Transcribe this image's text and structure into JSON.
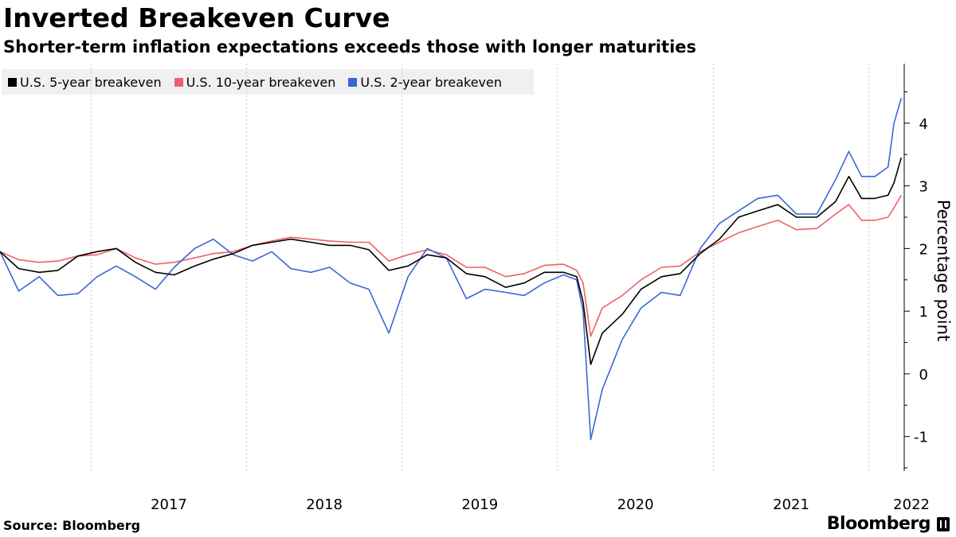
{
  "header": {
    "title": "Inverted Breakeven Curve",
    "subtitle": "Shorter-term inflation expectations exceeds those with longer maturities"
  },
  "footer": {
    "source": "Source: Bloomberg",
    "brand": "Bloomberg"
  },
  "chart_data": {
    "type": "line",
    "title": "Inverted Breakeven Curve",
    "subtitle": "Shorter-term inflation expectations exceeds those with longer maturities",
    "xlabel": "",
    "ylabel": "Percentage point",
    "xlim": [
      "2016-06-01",
      "2022-03-25"
    ],
    "ylim": [
      -1.55,
      4.95
    ],
    "y_ticks": [
      -1,
      0,
      1,
      2,
      3,
      4
    ],
    "x_ticks": [
      {
        "label": "2017",
        "date": "2017-01-01"
      },
      {
        "label": "2018",
        "date": "2018-01-01"
      },
      {
        "label": "2019",
        "date": "2019-01-01"
      },
      {
        "label": "2020",
        "date": "2020-01-01"
      },
      {
        "label": "2021",
        "date": "2021-01-01"
      },
      {
        "label": "2022",
        "date": "2022-01-01"
      }
    ],
    "grid": {
      "vertical": true,
      "horizontal": false
    },
    "y_axis_position": "right",
    "legend_position": "top-left",
    "series": [
      {
        "name": "U.S. 5-year breakeven",
        "color": "#000000",
        "points": [
          [
            "2016-06-01",
            1.95
          ],
          [
            "2016-07-15",
            1.68
          ],
          [
            "2016-09-01",
            1.62
          ],
          [
            "2016-10-15",
            1.65
          ],
          [
            "2016-12-01",
            1.88
          ],
          [
            "2017-01-15",
            1.95
          ],
          [
            "2017-03-01",
            2.0
          ],
          [
            "2017-04-15",
            1.78
          ],
          [
            "2017-06-01",
            1.62
          ],
          [
            "2017-07-15",
            1.58
          ],
          [
            "2017-09-01",
            1.72
          ],
          [
            "2017-10-15",
            1.83
          ],
          [
            "2017-12-01",
            1.92
          ],
          [
            "2018-01-15",
            2.05
          ],
          [
            "2018-03-01",
            2.1
          ],
          [
            "2018-04-15",
            2.15
          ],
          [
            "2018-06-01",
            2.1
          ],
          [
            "2018-07-15",
            2.05
          ],
          [
            "2018-09-01",
            2.05
          ],
          [
            "2018-10-15",
            1.98
          ],
          [
            "2018-12-01",
            1.65
          ],
          [
            "2019-01-15",
            1.72
          ],
          [
            "2019-03-01",
            1.9
          ],
          [
            "2019-04-15",
            1.85
          ],
          [
            "2019-06-01",
            1.6
          ],
          [
            "2019-07-15",
            1.55
          ],
          [
            "2019-09-01",
            1.38
          ],
          [
            "2019-10-15",
            1.45
          ],
          [
            "2019-12-01",
            1.62
          ],
          [
            "2020-01-15",
            1.62
          ],
          [
            "2020-02-15",
            1.55
          ],
          [
            "2020-03-01",
            1.15
          ],
          [
            "2020-03-19",
            0.15
          ],
          [
            "2020-04-15",
            0.65
          ],
          [
            "2020-06-01",
            0.95
          ],
          [
            "2020-07-15",
            1.35
          ],
          [
            "2020-09-01",
            1.55
          ],
          [
            "2020-10-15",
            1.6
          ],
          [
            "2020-12-01",
            1.92
          ],
          [
            "2021-01-15",
            2.15
          ],
          [
            "2021-03-01",
            2.5
          ],
          [
            "2021-04-15",
            2.6
          ],
          [
            "2021-06-01",
            2.7
          ],
          [
            "2021-07-15",
            2.5
          ],
          [
            "2021-09-01",
            2.5
          ],
          [
            "2021-10-15",
            2.75
          ],
          [
            "2021-11-15",
            3.15
          ],
          [
            "2021-12-15",
            2.8
          ],
          [
            "2022-01-15",
            2.8
          ],
          [
            "2022-02-15",
            2.85
          ],
          [
            "2022-03-01",
            3.05
          ],
          [
            "2022-03-18",
            3.45
          ]
        ]
      },
      {
        "name": "U.S. 10-year breakeven",
        "color": "#f0606a",
        "points": [
          [
            "2016-06-01",
            1.95
          ],
          [
            "2016-07-15",
            1.82
          ],
          [
            "2016-09-01",
            1.78
          ],
          [
            "2016-10-15",
            1.8
          ],
          [
            "2016-12-01",
            1.88
          ],
          [
            "2017-01-15",
            1.9
          ],
          [
            "2017-03-01",
            2.0
          ],
          [
            "2017-04-15",
            1.85
          ],
          [
            "2017-06-01",
            1.75
          ],
          [
            "2017-07-15",
            1.78
          ],
          [
            "2017-09-01",
            1.85
          ],
          [
            "2017-10-15",
            1.92
          ],
          [
            "2017-12-01",
            1.95
          ],
          [
            "2018-01-15",
            2.05
          ],
          [
            "2018-03-01",
            2.12
          ],
          [
            "2018-04-15",
            2.18
          ],
          [
            "2018-06-01",
            2.15
          ],
          [
            "2018-07-15",
            2.12
          ],
          [
            "2018-09-01",
            2.1
          ],
          [
            "2018-10-15",
            2.1
          ],
          [
            "2018-12-01",
            1.8
          ],
          [
            "2019-01-15",
            1.9
          ],
          [
            "2019-03-01",
            1.98
          ],
          [
            "2019-04-15",
            1.9
          ],
          [
            "2019-06-01",
            1.7
          ],
          [
            "2019-07-15",
            1.7
          ],
          [
            "2019-09-01",
            1.55
          ],
          [
            "2019-10-15",
            1.6
          ],
          [
            "2019-12-01",
            1.73
          ],
          [
            "2020-01-15",
            1.75
          ],
          [
            "2020-02-15",
            1.65
          ],
          [
            "2020-03-01",
            1.45
          ],
          [
            "2020-03-19",
            0.6
          ],
          [
            "2020-04-15",
            1.05
          ],
          [
            "2020-06-01",
            1.25
          ],
          [
            "2020-07-15",
            1.5
          ],
          [
            "2020-09-01",
            1.7
          ],
          [
            "2020-10-15",
            1.72
          ],
          [
            "2020-12-01",
            1.95
          ],
          [
            "2021-01-15",
            2.1
          ],
          [
            "2021-03-01",
            2.25
          ],
          [
            "2021-04-15",
            2.35
          ],
          [
            "2021-06-01",
            2.45
          ],
          [
            "2021-07-15",
            2.3
          ],
          [
            "2021-09-01",
            2.32
          ],
          [
            "2021-10-15",
            2.55
          ],
          [
            "2021-11-15",
            2.7
          ],
          [
            "2021-12-15",
            2.45
          ],
          [
            "2022-01-15",
            2.45
          ],
          [
            "2022-02-15",
            2.5
          ],
          [
            "2022-03-01",
            2.65
          ],
          [
            "2022-03-18",
            2.85
          ]
        ]
      },
      {
        "name": "U.S. 2-year breakeven",
        "color": "#3a66d8",
        "points": [
          [
            "2016-06-01",
            1.95
          ],
          [
            "2016-07-15",
            1.32
          ],
          [
            "2016-09-01",
            1.55
          ],
          [
            "2016-10-15",
            1.25
          ],
          [
            "2016-12-01",
            1.28
          ],
          [
            "2017-01-15",
            1.55
          ],
          [
            "2017-03-01",
            1.72
          ],
          [
            "2017-04-15",
            1.55
          ],
          [
            "2017-06-01",
            1.35
          ],
          [
            "2017-07-15",
            1.7
          ],
          [
            "2017-09-01",
            2.0
          ],
          [
            "2017-10-15",
            2.15
          ],
          [
            "2017-12-01",
            1.9
          ],
          [
            "2018-01-15",
            1.8
          ],
          [
            "2018-03-01",
            1.95
          ],
          [
            "2018-04-15",
            1.68
          ],
          [
            "2018-06-01",
            1.62
          ],
          [
            "2018-07-15",
            1.7
          ],
          [
            "2018-09-01",
            1.45
          ],
          [
            "2018-10-15",
            1.35
          ],
          [
            "2018-12-01",
            0.65
          ],
          [
            "2019-01-15",
            1.55
          ],
          [
            "2019-03-01",
            2.0
          ],
          [
            "2019-04-15",
            1.85
          ],
          [
            "2019-06-01",
            1.2
          ],
          [
            "2019-07-15",
            1.35
          ],
          [
            "2019-09-01",
            1.3
          ],
          [
            "2019-10-15",
            1.25
          ],
          [
            "2019-12-01",
            1.45
          ],
          [
            "2020-01-15",
            1.58
          ],
          [
            "2020-02-15",
            1.5
          ],
          [
            "2020-03-01",
            1.0
          ],
          [
            "2020-03-19",
            -1.05
          ],
          [
            "2020-04-15",
            -0.25
          ],
          [
            "2020-06-01",
            0.55
          ],
          [
            "2020-07-15",
            1.05
          ],
          [
            "2020-09-01",
            1.3
          ],
          [
            "2020-10-15",
            1.25
          ],
          [
            "2020-12-01",
            2.0
          ],
          [
            "2021-01-15",
            2.4
          ],
          [
            "2021-03-01",
            2.6
          ],
          [
            "2021-04-15",
            2.8
          ],
          [
            "2021-06-01",
            2.85
          ],
          [
            "2021-07-15",
            2.55
          ],
          [
            "2021-09-01",
            2.55
          ],
          [
            "2021-10-15",
            3.1
          ],
          [
            "2021-11-15",
            3.55
          ],
          [
            "2021-12-15",
            3.15
          ],
          [
            "2022-01-15",
            3.15
          ],
          [
            "2022-02-15",
            3.3
          ],
          [
            "2022-03-01",
            4.0
          ],
          [
            "2022-03-18",
            4.4
          ]
        ]
      }
    ]
  }
}
